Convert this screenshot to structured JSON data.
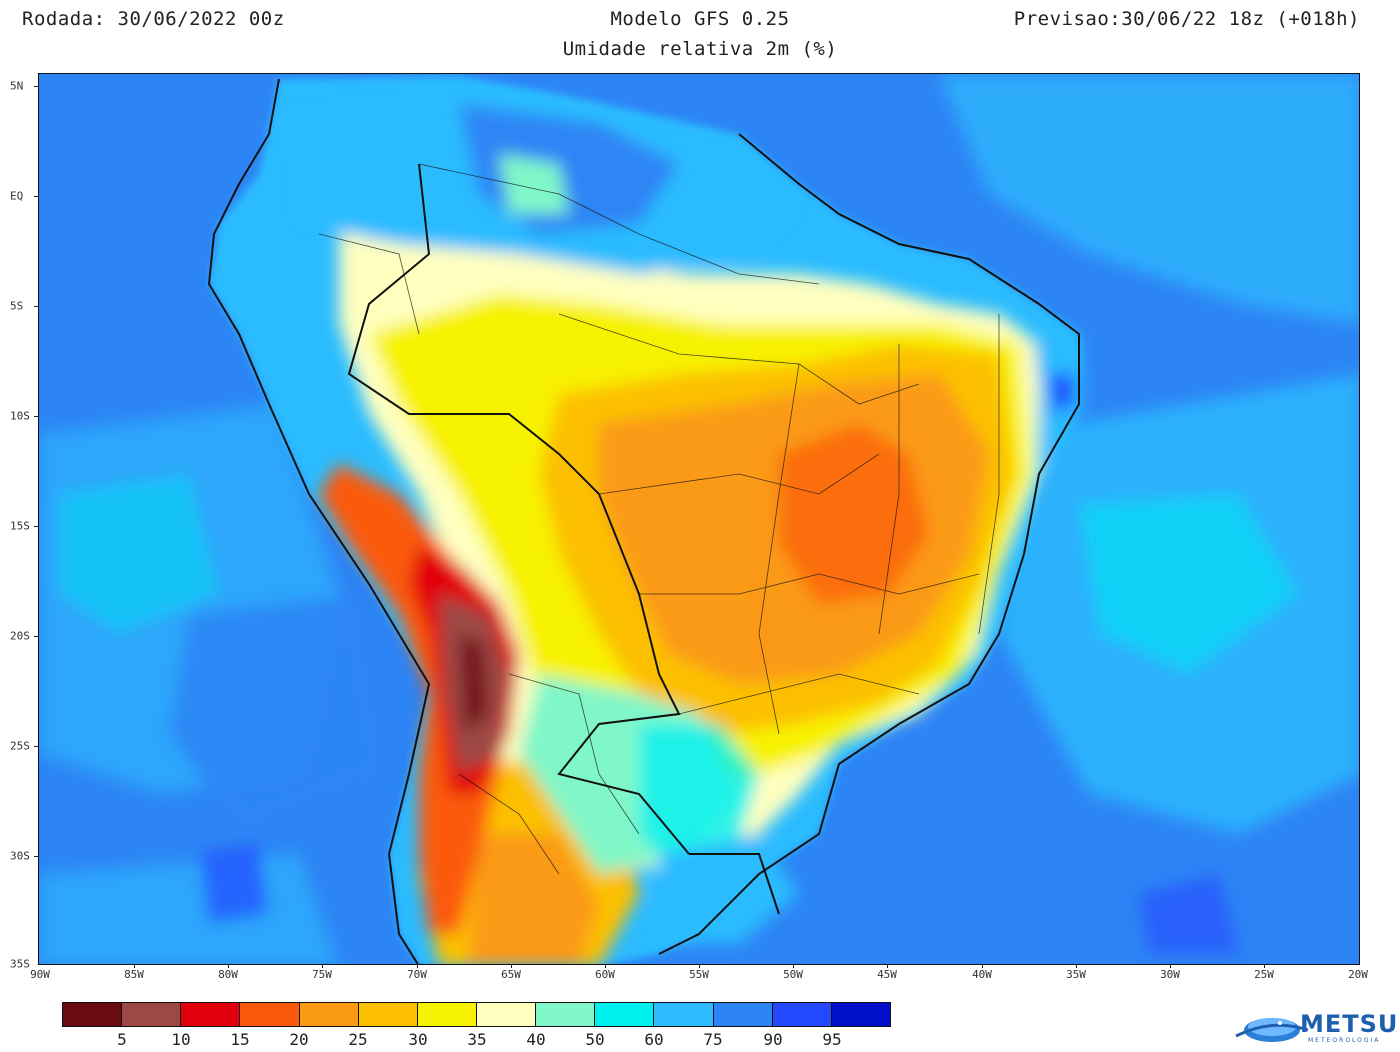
{
  "header": {
    "run": "Rodada: 30/06/2022 00z",
    "model": "Modelo GFS 0.25",
    "subtitle": "Umidade relativa 2m (%)",
    "forecast": "Previsao:30/06/22 18z (+018h)"
  },
  "axes": {
    "lat_labels": [
      "5N",
      "EQ",
      "5S",
      "10S",
      "15S",
      "20S",
      "25S",
      "30S",
      "35S"
    ],
    "lon_labels": [
      "90W",
      "85W",
      "80W",
      "75W",
      "70W",
      "65W",
      "60W",
      "55W",
      "50W",
      "45W",
      "40W",
      "35W",
      "30W",
      "25W",
      "20W"
    ]
  },
  "colorbar": {
    "colors": [
      "#6b0a10",
      "#9c4845",
      "#e3000d",
      "#fb5a0c",
      "#fb9a14",
      "#fcc000",
      "#f7f200",
      "#ffffc0",
      "#80f7c8",
      "#00f0f0",
      "#2cbcff",
      "#2d85f5",
      "#2448ff",
      "#0010c8"
    ],
    "labels": [
      "5",
      "10",
      "15",
      "20",
      "25",
      "30",
      "35",
      "40",
      "50",
      "60",
      "75",
      "90",
      "95"
    ]
  },
  "logo": {
    "name": "METSUL",
    "sub": "METEOROLOGIA"
  },
  "icons": {
    "logo_icon": "globe-swoosh-icon"
  }
}
